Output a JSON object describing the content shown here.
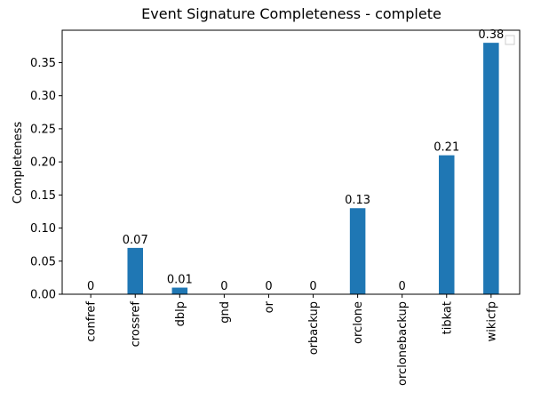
{
  "chart_data": {
    "type": "bar",
    "title": "Event Signature Completeness - complete",
    "ylabel": "Completeness",
    "categories": [
      "confref",
      "crossref",
      "dblp",
      "gnd",
      "or",
      "orbackup",
      "orclone",
      "orclonebackup",
      "tibkat",
      "wikicfp"
    ],
    "values": [
      0,
      0.07,
      0.01,
      0,
      0,
      0,
      0.13,
      0,
      0.21,
      0.38
    ],
    "color": "#1f77b4",
    "ylim": [
      0,
      0.399
    ],
    "yticks": [
      {
        "value": 0,
        "label": "0.00"
      },
      {
        "value": 0.05,
        "label": "0.05"
      },
      {
        "value": 0.1,
        "label": "0.10"
      },
      {
        "value": 0.15,
        "label": "0.15"
      },
      {
        "value": 0.2,
        "label": "0.20"
      },
      {
        "value": 0.25,
        "label": "0.25"
      },
      {
        "value": 0.3,
        "label": "0.30"
      },
      {
        "value": 0.35,
        "label": "0.35"
      }
    ]
  }
}
